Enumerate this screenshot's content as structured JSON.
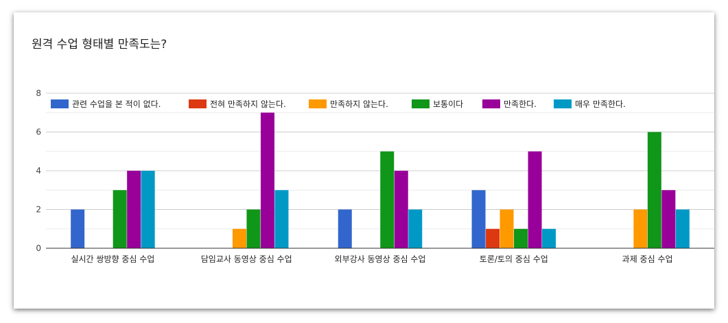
{
  "chart_data": {
    "type": "bar",
    "title": "원격 수업 형태별 만족도는?",
    "categories": [
      "실시간 쌍방향 중심 수업",
      "담임교사 동영상 중심 수업",
      "외부강사 동영상 중심 수업",
      "토론/토의 중심 수업",
      "과제 중심 수업"
    ],
    "series": [
      {
        "name": "관련 수업을 본 적이 없다.",
        "color": "#3366cc",
        "values": [
          2,
          0,
          2,
          3,
          0
        ]
      },
      {
        "name": "전혀 만족하지 않는다.",
        "color": "#dc3912",
        "values": [
          0,
          0,
          0,
          1,
          0
        ]
      },
      {
        "name": "만족하지 않는다.",
        "color": "#ff9900",
        "values": [
          0,
          1,
          0,
          2,
          2
        ]
      },
      {
        "name": "보통이다",
        "color": "#109618",
        "values": [
          3,
          2,
          5,
          1,
          6
        ]
      },
      {
        "name": "만족한다.",
        "color": "#990099",
        "values": [
          4,
          7,
          4,
          5,
          3
        ]
      },
      {
        "name": "매우 만족한다.",
        "color": "#0099c6",
        "values": [
          4,
          3,
          2,
          1,
          2
        ]
      }
    ],
    "yticks": [
      0,
      2,
      4,
      6,
      8
    ],
    "ylim": [
      0,
      8
    ],
    "legend_position": "top",
    "grid": true
  }
}
